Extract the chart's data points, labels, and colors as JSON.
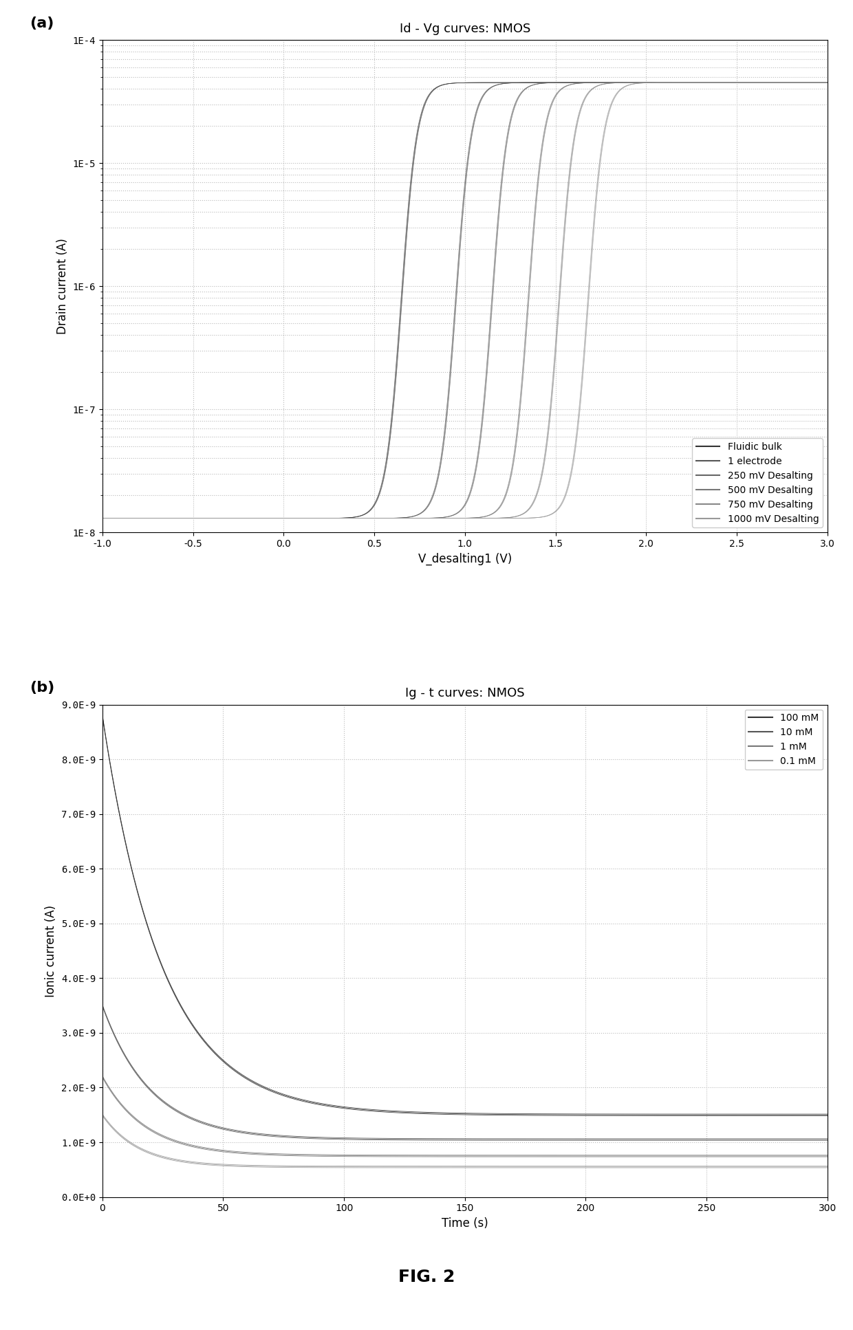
{
  "panel_a": {
    "title": "Id - Vg curves: NMOS",
    "xlabel": "V_desalting1 (V)",
    "ylabel": "Drain current (A)",
    "xlim": [
      -1.0,
      3.0
    ],
    "ylim_log": [
      1e-08,
      0.0001
    ],
    "yticks_log": [
      1e-08,
      1e-07,
      1e-06,
      1e-05,
      0.0001
    ],
    "ytick_labels": [
      "1E-8",
      "1E-7",
      "1E-6",
      "1E-5",
      "1E-4"
    ],
    "xticks": [
      -1.0,
      -0.5,
      0.0,
      0.5,
      1.0,
      1.5,
      2.0,
      2.5,
      3.0
    ],
    "curves": [
      {
        "label": "Fluidic bulk",
        "Vth": 0.65,
        "color": "#333333",
        "lw": 1.2
      },
      {
        "label": "1 electrode",
        "Vth": 0.95,
        "color": "#555555",
        "lw": 1.2
      },
      {
        "label": "250 mV Desalting",
        "Vth": 1.15,
        "color": "#666666",
        "lw": 1.2
      },
      {
        "label": "500 mV Desalting",
        "Vth": 1.35,
        "color": "#777777",
        "lw": 1.2
      },
      {
        "label": "750 mV Desalting",
        "Vth": 1.52,
        "color": "#888888",
        "lw": 1.2
      },
      {
        "label": "1000 mV Desalting",
        "Vth": 1.68,
        "color": "#999999",
        "lw": 1.2
      }
    ],
    "Id_min": 1.3e-08,
    "Id_max": 4.5e-05,
    "S": 0.1
  },
  "panel_b": {
    "title": "Ig - t curves: NMOS",
    "xlabel": "Time (s)",
    "ylabel": "Ionic current (A)",
    "xlim": [
      0,
      300
    ],
    "ylim": [
      0,
      9e-09
    ],
    "yticks": [
      0,
      1e-09,
      2e-09,
      3e-09,
      4e-09,
      5e-09,
      6e-09,
      7e-09,
      8e-09,
      9e-09
    ],
    "ytick_labels": [
      "0.0E+0",
      "1.0E-9",
      "2.0E-9",
      "3.0E-9",
      "4.0E-9",
      "5.0E-9",
      "6.0E-9",
      "7.0E-9",
      "8.0E-9",
      "9.0E-9"
    ],
    "xticks": [
      0,
      50,
      100,
      150,
      200,
      250,
      300
    ],
    "curves": [
      {
        "label": "100 mM",
        "I0": 8.8e-09,
        "Iinf": 1.5e-09,
        "tau": 25,
        "color": "#333333",
        "lw": 1.2
      },
      {
        "label": "10 mM",
        "I0": 3.5e-09,
        "Iinf": 1.05e-09,
        "tau": 20,
        "color": "#555555",
        "lw": 1.2
      },
      {
        "label": "1 mM",
        "I0": 2.2e-09,
        "Iinf": 7.5e-10,
        "tau": 18,
        "color": "#777777",
        "lw": 1.2
      },
      {
        "label": "0.1 mM",
        "I0": 1.5e-09,
        "Iinf": 5.5e-10,
        "tau": 15,
        "color": "#999999",
        "lw": 1.2
      }
    ]
  },
  "fig_label": "FIG. 2",
  "background_color": "#ffffff",
  "grid_color": "#bbbbbb",
  "legend_fontsize": 10,
  "axis_fontsize": 12,
  "title_fontsize": 13,
  "tick_fontsize": 10,
  "panel_label_fontsize": 16
}
